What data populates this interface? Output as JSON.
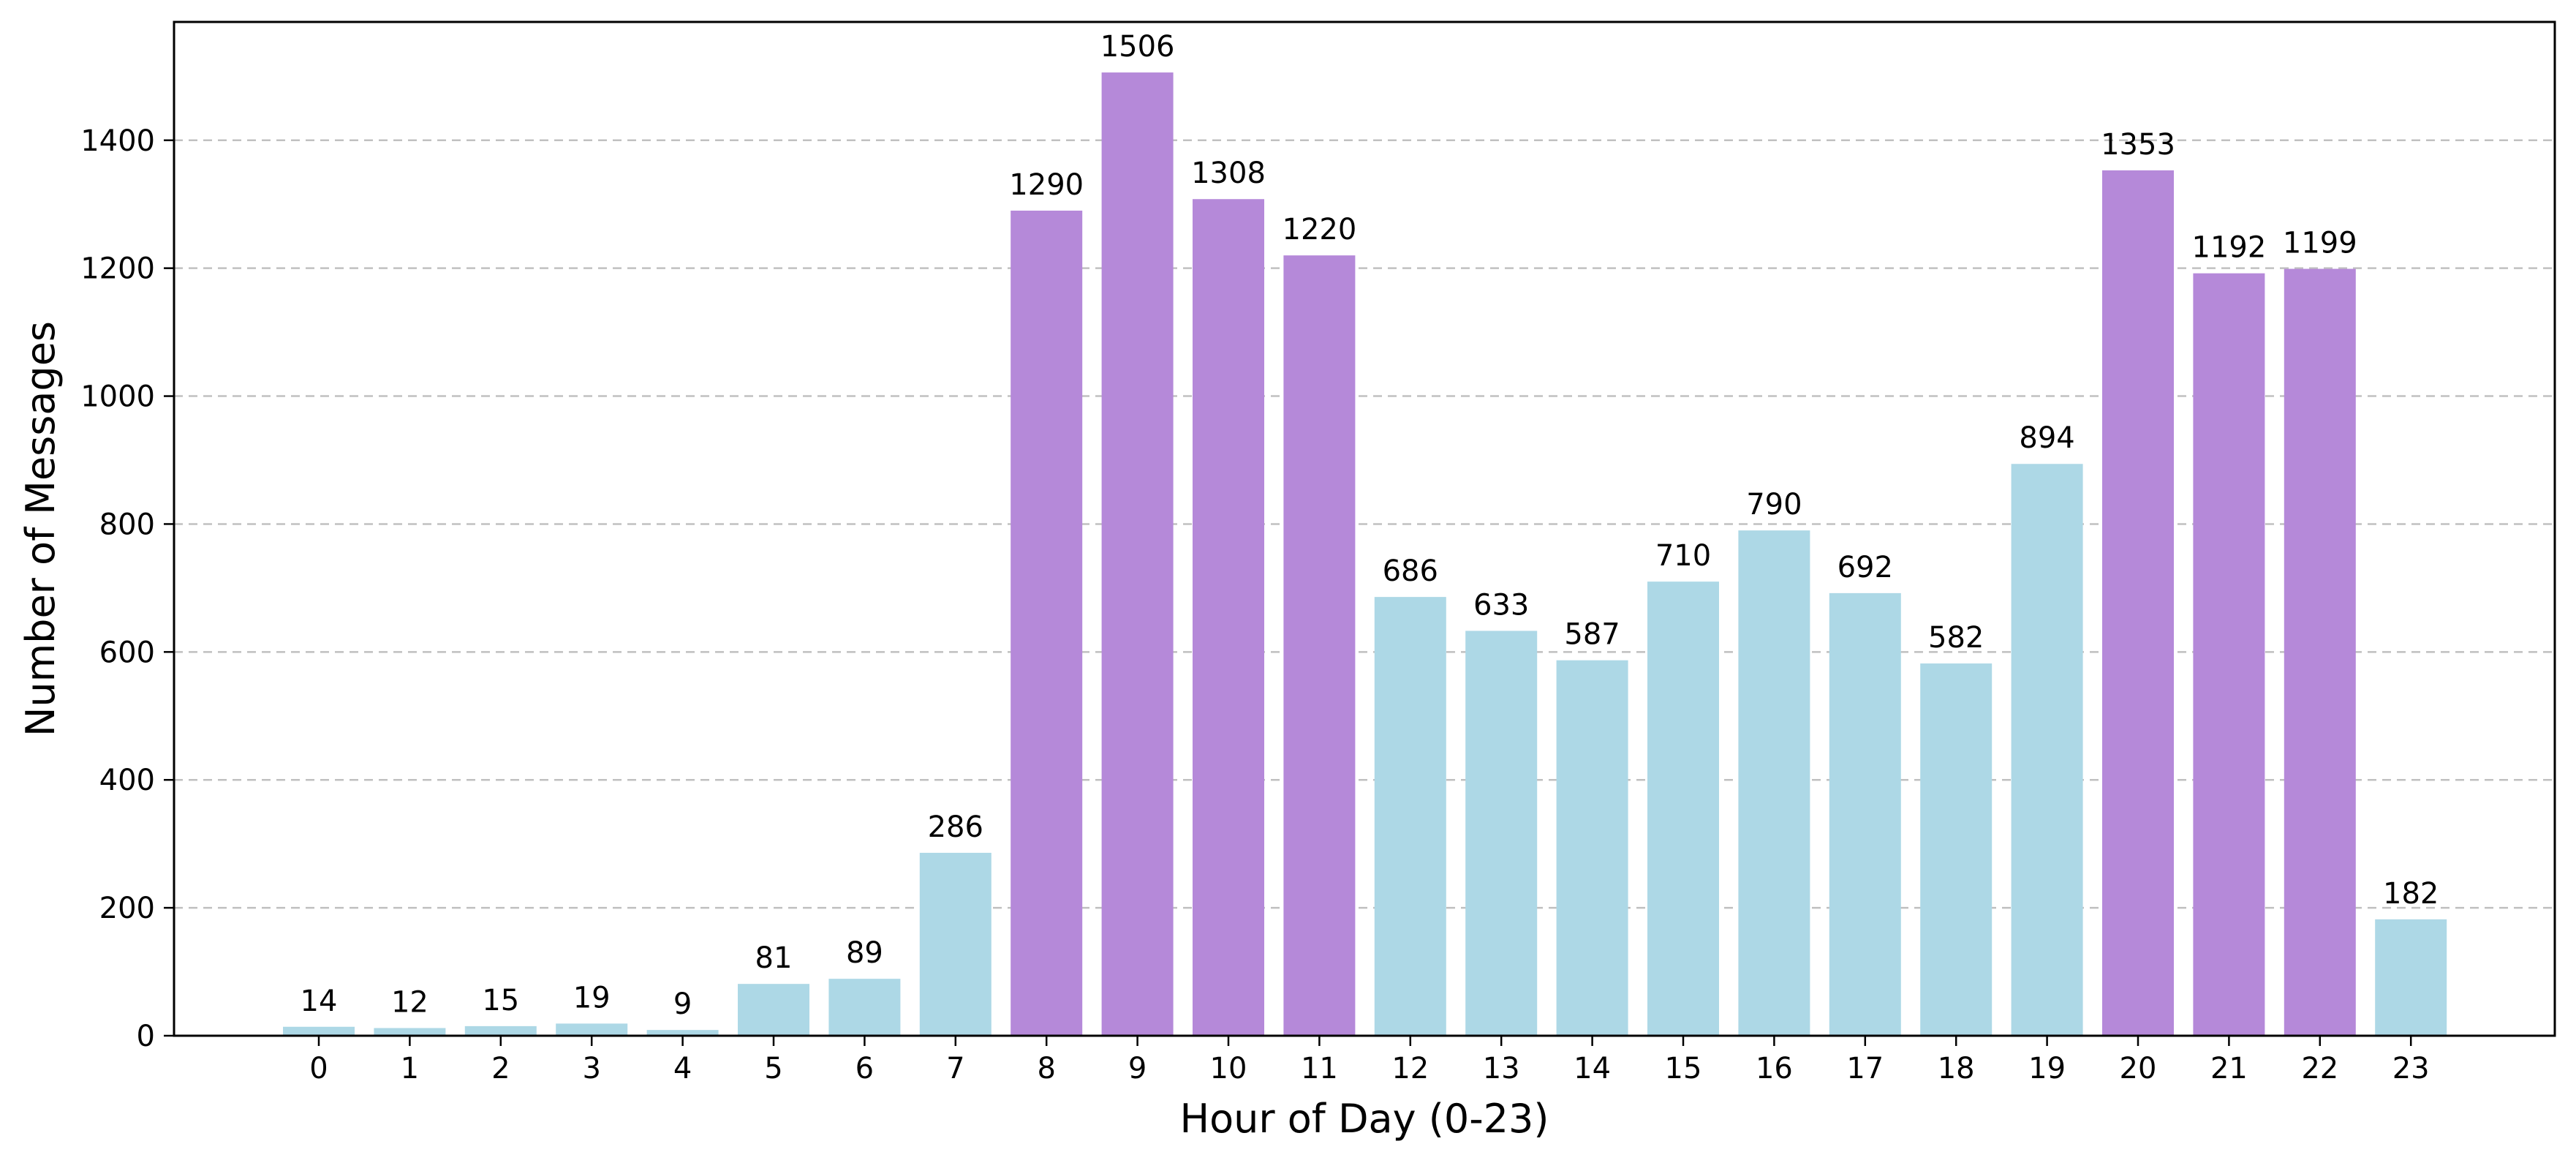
{
  "chart_data": {
    "type": "bar",
    "title": "",
    "xlabel": "Hour of Day (0-23)",
    "ylabel": "Number of Messages",
    "categories": [
      "0",
      "1",
      "2",
      "3",
      "4",
      "5",
      "6",
      "7",
      "8",
      "9",
      "10",
      "11",
      "12",
      "13",
      "14",
      "15",
      "16",
      "17",
      "18",
      "19",
      "20",
      "21",
      "22",
      "23"
    ],
    "values": [
      14,
      12,
      15,
      19,
      9,
      81,
      89,
      286,
      1290,
      1506,
      1308,
      1220,
      686,
      633,
      587,
      710,
      790,
      692,
      582,
      894,
      1353,
      1192,
      1199,
      182
    ],
    "value_labels": [
      "14",
      "12",
      "15",
      "19",
      "9",
      "81",
      "89",
      "286",
      "1290",
      "1506",
      "1308",
      "1220",
      "686",
      "633",
      "587",
      "710",
      "790",
      "692",
      "582",
      "894",
      "1353",
      "1192",
      "1199",
      "182"
    ],
    "ylim": [
      0,
      1585
    ],
    "yticks": [
      0,
      200,
      400,
      600,
      800,
      1000,
      1200,
      1400
    ],
    "ytick_labels": [
      "0",
      "200",
      "400",
      "600",
      "800",
      "1000",
      "1200",
      "1400"
    ],
    "grid": "y-dashed",
    "highlight_threshold": 1000,
    "colors": {
      "normal": "#add8e6",
      "highlight": "#b589d9",
      "grid": "#c0c0c0",
      "axis": "#000000"
    }
  }
}
